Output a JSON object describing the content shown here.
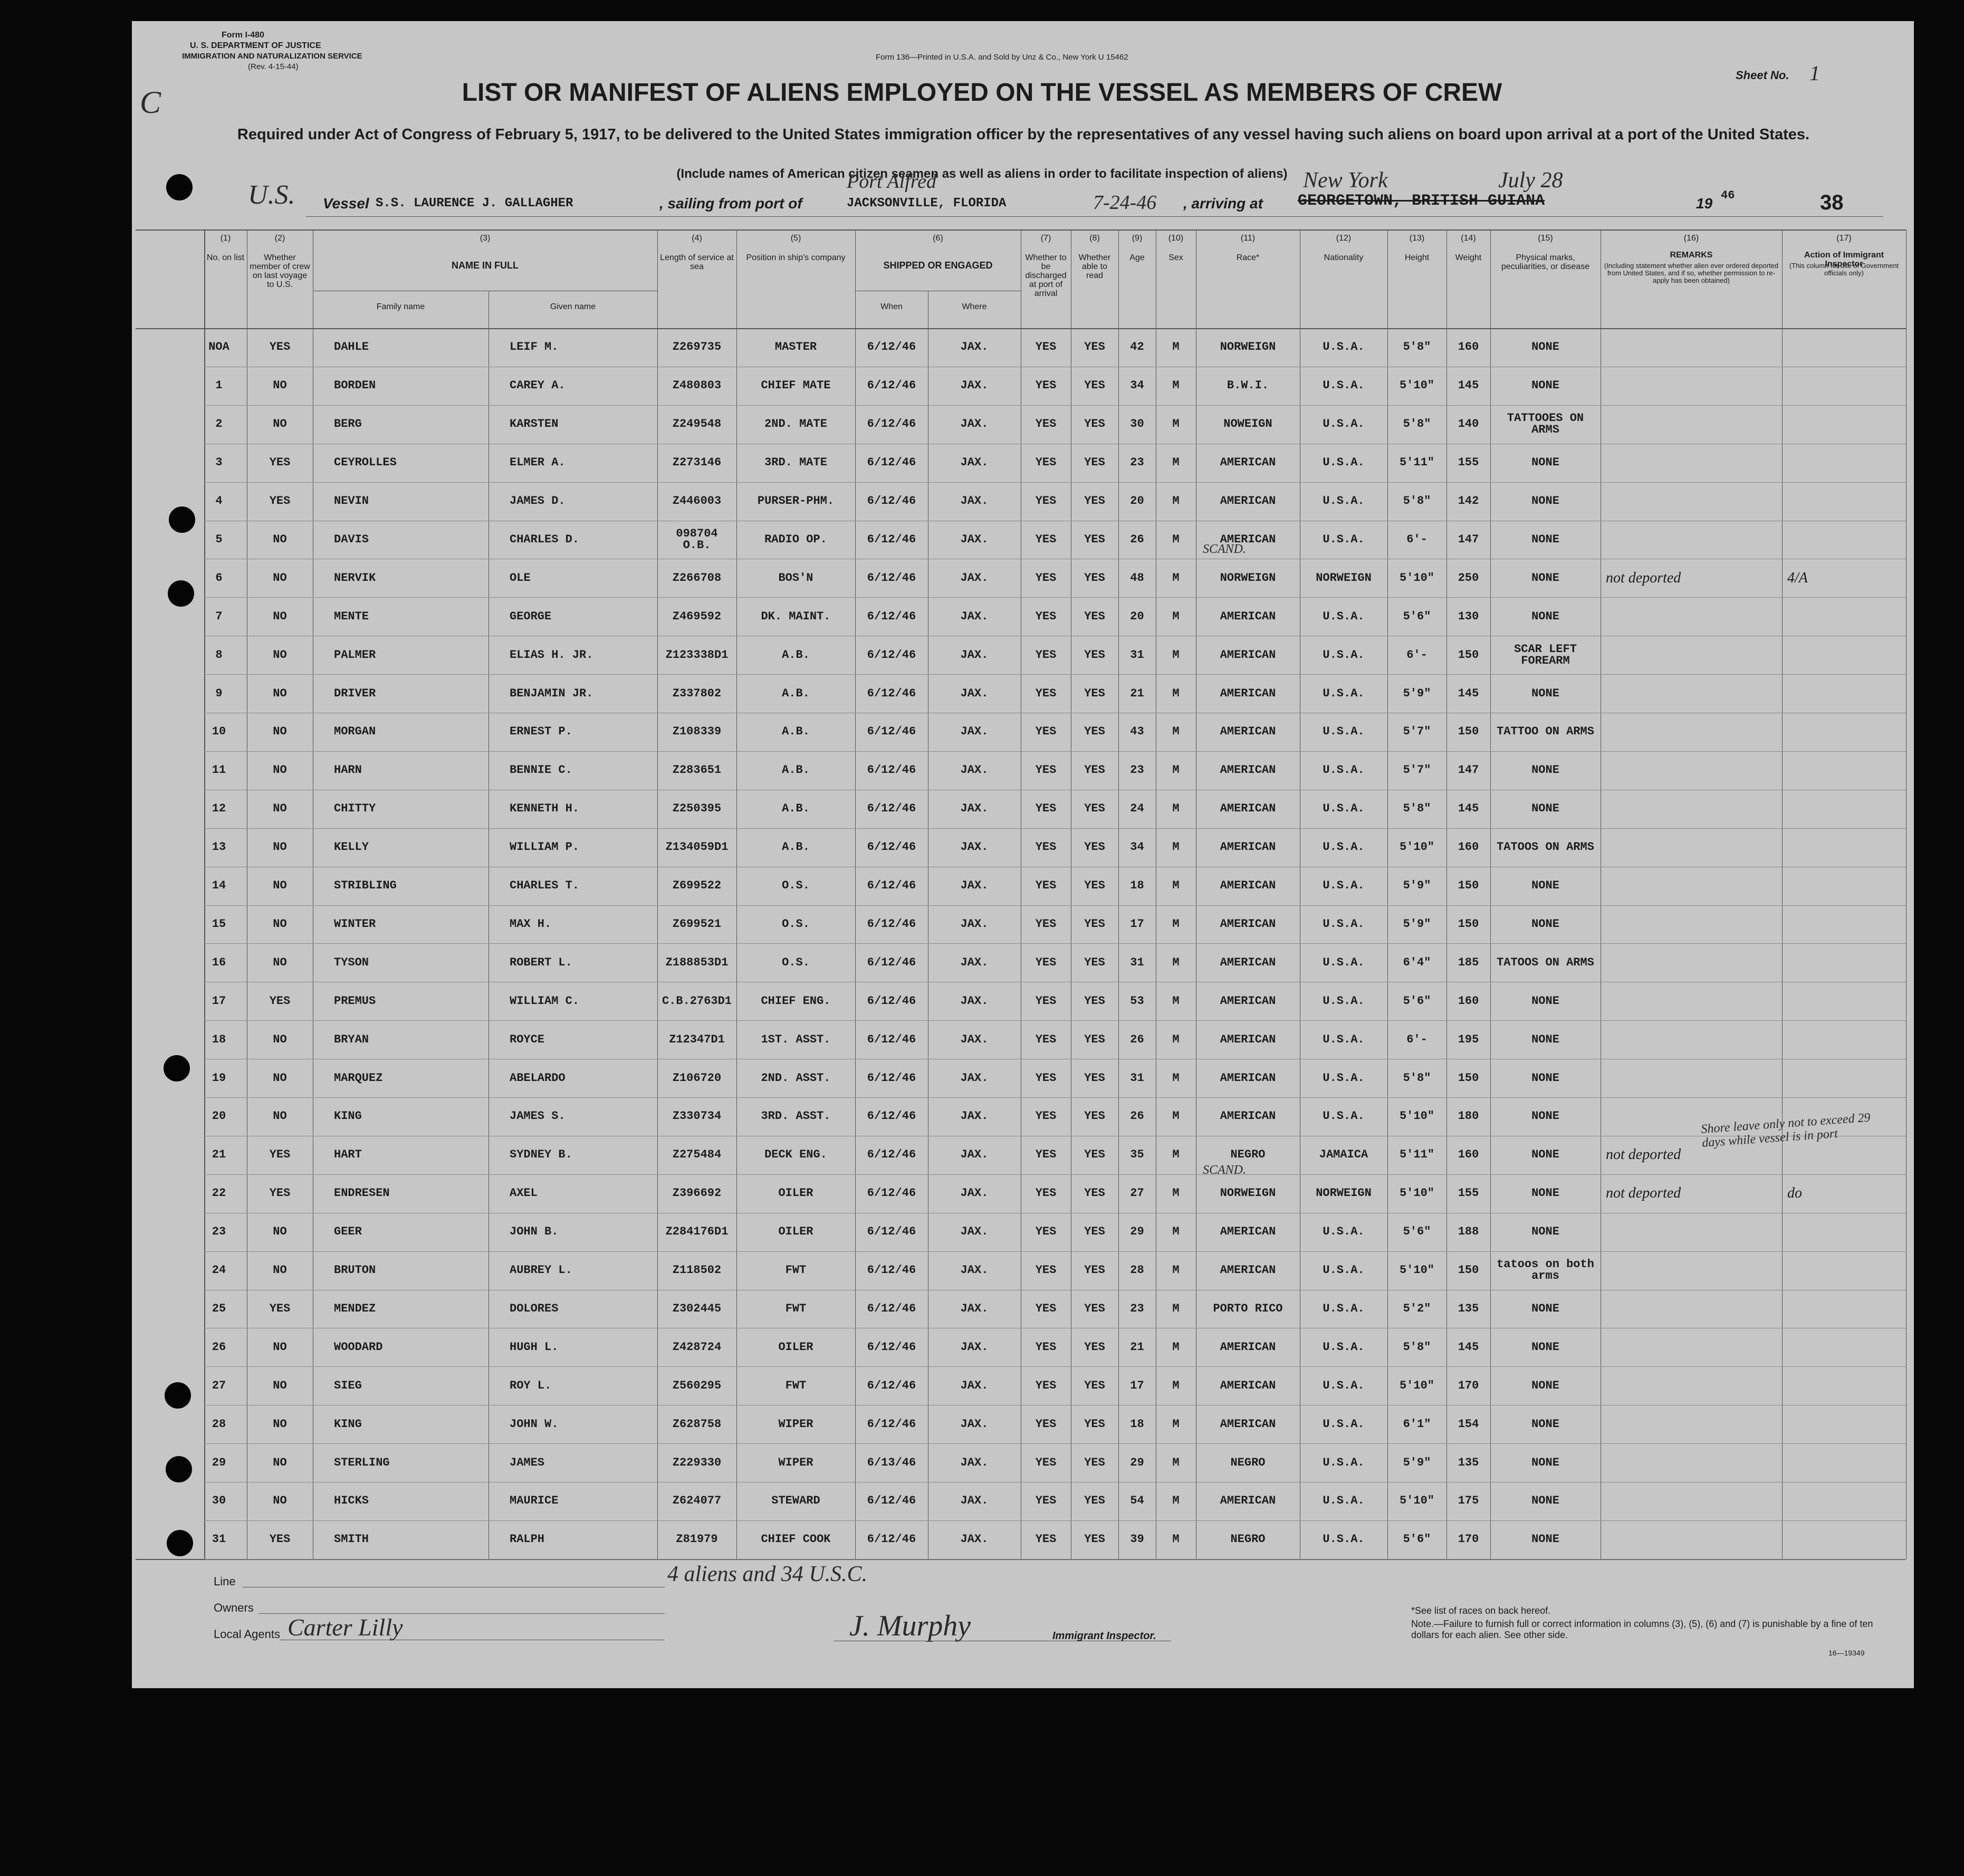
{
  "form": {
    "form_number": "Form I-480",
    "department": "U. S. DEPARTMENT OF JUSTICE",
    "service": "IMMIGRATION AND NATURALIZATION SERVICE",
    "revision": "(Rev. 4-15-44)",
    "printer": "Form 136—Printed in U.S.A. and Sold by Unz & Co., New York  U 15462",
    "sheet_label": "Sheet No.",
    "sheet_number": "1",
    "corner_mark": "C"
  },
  "header": {
    "title": "LIST OR MANIFEST OF ALIENS EMPLOYED ON THE VESSEL AS MEMBERS OF CREW",
    "subtitle": "Required under Act of Congress of February 5, 1917, to be delivered to the United States immigration officer by the representatives of any vessel having such aliens on board upon arrival at a port of the United States.",
    "note": "(Include names of American citizen seamen as well as aliens in order to facilitate inspection of aliens)"
  },
  "vessel": {
    "flag": "U.S.",
    "vessel_label": "Vessel",
    "vessel_name": "S.S. LAURENCE J. GALLAGHER",
    "sailing_label": ", sailing from port of",
    "port_handwritten": "Port Alfred",
    "port": "JACKSONVILLE, FLORIDA",
    "date": "7-24-46",
    "arriving_label": ", arriving at",
    "arriving_handwritten": "New York",
    "arriving_struck": "GEORGETOWN, BRITISH GUIANA",
    "arrival_date": "July 28",
    "year_prefix": "19",
    "year": "46",
    "page_number": "38"
  },
  "table": {
    "columns": [
      {
        "num": "(1)",
        "label": "No. on list"
      },
      {
        "num": "(2)",
        "label": "Whether member of crew on last voyage to U.S."
      },
      {
        "num": "(3)",
        "label": "NAME IN FULL",
        "sub": [
          "Family name",
          "Given name"
        ]
      },
      {
        "num": "(4)",
        "label": "Length of service at sea"
      },
      {
        "num": "(5)",
        "label": "Position in ship's company"
      },
      {
        "num": "(6)",
        "label": "SHIPPED OR ENGAGED",
        "sub": [
          "When",
          "Where"
        ]
      },
      {
        "num": "(7)",
        "label": "Whether to be discharged at port of arrival"
      },
      {
        "num": "(8)",
        "label": "Whether able to read"
      },
      {
        "num": "(9)",
        "label": "Age"
      },
      {
        "num": "(10)",
        "label": "Sex"
      },
      {
        "num": "(11)",
        "label": "Race*"
      },
      {
        "num": "(12)",
        "label": "Nationality"
      },
      {
        "num": "(13)",
        "label": "Height"
      },
      {
        "num": "(14)",
        "label": "Weight"
      },
      {
        "num": "(15)",
        "label": "Physical marks, peculiarities, or disease"
      },
      {
        "num": "(16)",
        "label": "REMARKS",
        "note": "(Including statement whether alien ever ordered deported from United States, and if so, whether permission to re-apply has been obtained)"
      },
      {
        "num": "(17)",
        "label": "Action of Immigrant Inspector",
        "note": "(This column for use of Government officials only)"
      }
    ],
    "rows": [
      [
        "NOA",
        "YES",
        "DAHLE",
        "LEIF M.",
        "Z269735",
        "MASTER",
        "6/12/46",
        "JAX.",
        "YES",
        "YES",
        "42",
        "M",
        "NORWEIGN",
        "U.S.A.",
        "5'8\"",
        "160",
        "NONE"
      ],
      [
        "1",
        "NO",
        "BORDEN",
        "CAREY A.",
        "Z480803",
        "CHIEF MATE",
        "6/12/46",
        "JAX.",
        "YES",
        "YES",
        "34",
        "M",
        "B.W.I.",
        "U.S.A.",
        "5'10\"",
        "145",
        "NONE"
      ],
      [
        "2",
        "NO",
        "BERG",
        "KARSTEN",
        "Z249548",
        "2ND. MATE",
        "6/12/46",
        "JAX.",
        "YES",
        "YES",
        "30",
        "M",
        "NOWEIGN",
        "U.S.A.",
        "5'8\"",
        "140",
        "TATTOOES ON ARMS"
      ],
      [
        "3",
        "YES",
        "CEYROLLES",
        "ELMER A.",
        "Z273146",
        "3RD. MATE",
        "6/12/46",
        "JAX.",
        "YES",
        "YES",
        "23",
        "M",
        "AMERICAN",
        "U.S.A.",
        "5'11\"",
        "155",
        "NONE"
      ],
      [
        "4",
        "YES",
        "NEVIN",
        "JAMES D.",
        "Z446003",
        "PURSER-PHM.",
        "6/12/46",
        "JAX.",
        "YES",
        "YES",
        "20",
        "M",
        "AMERICAN",
        "U.S.A.",
        "5'8\"",
        "142",
        "NONE"
      ],
      [
        "5",
        "NO",
        "DAVIS",
        "CHARLES D.",
        "098704\nO.B.",
        "RADIO OP.",
        "6/12/46",
        "JAX.",
        "YES",
        "YES",
        "26",
        "M",
        "AMERICAN",
        "U.S.A.",
        "6'-",
        "147",
        "NONE"
      ],
      [
        "6",
        "NO",
        "NERVIK",
        "OLE",
        "Z266708",
        "BOS'N",
        "6/12/46",
        "JAX.",
        "YES",
        "YES",
        "48",
        "M",
        "NORWEIGN",
        "NORWEIGN",
        "5'10\"",
        "250",
        "NONE",
        "not deported",
        "4/A"
      ],
      [
        "7",
        "NO",
        "MENTE",
        "GEORGE",
        "Z469592",
        "DK. MAINT.",
        "6/12/46",
        "JAX.",
        "YES",
        "YES",
        "20",
        "M",
        "AMERICAN",
        "U.S.A.",
        "5'6\"",
        "130",
        "NONE"
      ],
      [
        "8",
        "NO",
        "PALMER",
        "ELIAS H. JR.",
        "Z123338D1",
        "A.B.",
        "6/12/46",
        "JAX.",
        "YES",
        "YES",
        "31",
        "M",
        "AMERICAN",
        "U.S.A.",
        "6'-",
        "150",
        "SCAR LEFT FOREARM"
      ],
      [
        "9",
        "NO",
        "DRIVER",
        "BENJAMIN JR.",
        "Z337802",
        "A.B.",
        "6/12/46",
        "JAX.",
        "YES",
        "YES",
        "21",
        "M",
        "AMERICAN",
        "U.S.A.",
        "5'9\"",
        "145",
        "NONE"
      ],
      [
        "10",
        "NO",
        "MORGAN",
        "ERNEST P.",
        "Z108339",
        "A.B.",
        "6/12/46",
        "JAX.",
        "YES",
        "YES",
        "43",
        "M",
        "AMERICAN",
        "U.S.A.",
        "5'7\"",
        "150",
        "TATTOO ON ARMS"
      ],
      [
        "11",
        "NO",
        "HARN",
        "BENNIE C.",
        "Z283651",
        "A.B.",
        "6/12/46",
        "JAX.",
        "YES",
        "YES",
        "23",
        "M",
        "AMERICAN",
        "U.S.A.",
        "5'7\"",
        "147",
        "NONE"
      ],
      [
        "12",
        "NO",
        "CHITTY",
        "KENNETH H.",
        "Z250395",
        "A.B.",
        "6/12/46",
        "JAX.",
        "YES",
        "YES",
        "24",
        "M",
        "AMERICAN",
        "U.S.A.",
        "5'8\"",
        "145",
        "NONE"
      ],
      [
        "13",
        "NO",
        "KELLY",
        "WILLIAM P.",
        "Z134059D1",
        "A.B.",
        "6/12/46",
        "JAX.",
        "YES",
        "YES",
        "34",
        "M",
        "AMERICAN",
        "U.S.A.",
        "5'10\"",
        "160",
        "TATOOS ON ARMS"
      ],
      [
        "14",
        "NO",
        "STRIBLING",
        "CHARLES T.",
        "Z699522",
        "O.S.",
        "6/12/46",
        "JAX.",
        "YES",
        "YES",
        "18",
        "M",
        "AMERICAN",
        "U.S.A.",
        "5'9\"",
        "150",
        "NONE"
      ],
      [
        "15",
        "NO",
        "WINTER",
        "MAX H.",
        "Z699521",
        "O.S.",
        "6/12/46",
        "JAX.",
        "YES",
        "YES",
        "17",
        "M",
        "AMERICAN",
        "U.S.A.",
        "5'9\"",
        "150",
        "NONE"
      ],
      [
        "16",
        "NO",
        "TYSON",
        "ROBERT L.",
        "Z188853D1",
        "O.S.",
        "6/12/46",
        "JAX.",
        "YES",
        "YES",
        "31",
        "M",
        "AMERICAN",
        "U.S.A.",
        "6'4\"",
        "185",
        "TATOOS ON ARMS"
      ],
      [
        "17",
        "YES",
        "PREMUS",
        "WILLIAM C.",
        "C.B.2763D1",
        "CHIEF ENG.",
        "6/12/46",
        "JAX.",
        "YES",
        "YES",
        "53",
        "M",
        "AMERICAN",
        "U.S.A.",
        "5'6\"",
        "160",
        "NONE"
      ],
      [
        "18",
        "NO",
        "BRYAN",
        "ROYCE",
        "Z12347D1",
        "1ST. ASST.",
        "6/12/46",
        "JAX.",
        "YES",
        "YES",
        "26",
        "M",
        "AMERICAN",
        "U.S.A.",
        "6'-",
        "195",
        "NONE"
      ],
      [
        "19",
        "NO",
        "MARQUEZ",
        "ABELARDO",
        "Z106720",
        "2ND. ASST.",
        "6/12/46",
        "JAX.",
        "YES",
        "YES",
        "31",
        "M",
        "AMERICAN",
        "U.S.A.",
        "5'8\"",
        "150",
        "NONE"
      ],
      [
        "20",
        "NO",
        "KING",
        "JAMES S.",
        "Z330734",
        "3RD. ASST.",
        "6/12/46",
        "JAX.",
        "YES",
        "YES",
        "26",
        "M",
        "AMERICAN",
        "U.S.A.",
        "5'10\"",
        "180",
        "NONE"
      ],
      [
        "21",
        "YES",
        "HART",
        "SYDNEY B.",
        "Z275484",
        "DECK ENG.",
        "6/12/46",
        "JAX.",
        "YES",
        "YES",
        "35",
        "M",
        "NEGRO",
        "JAMAICA",
        "5'11\"",
        "160",
        "NONE",
        "not deported"
      ],
      [
        "22",
        "YES",
        "ENDRESEN",
        "AXEL",
        "Z396692",
        "OILER",
        "6/12/46",
        "JAX.",
        "YES",
        "YES",
        "27",
        "M",
        "NORWEIGN",
        "NORWEIGN",
        "5'10\"",
        "155",
        "NONE",
        "not deported",
        "do"
      ],
      [
        "23",
        "NO",
        "GEER",
        "JOHN B.",
        "Z284176D1",
        "OILER",
        "6/12/46",
        "JAX.",
        "YES",
        "YES",
        "29",
        "M",
        "AMERICAN",
        "U.S.A.",
        "5'6\"",
        "188",
        "NONE"
      ],
      [
        "24",
        "NO",
        "BRUTON",
        "AUBREY L.",
        "Z118502",
        "FWT",
        "6/12/46",
        "JAX.",
        "YES",
        "YES",
        "28",
        "M",
        "AMERICAN",
        "U.S.A.",
        "5'10\"",
        "150",
        "tatoos on both arms"
      ],
      [
        "25",
        "YES",
        "MENDEZ",
        "DOLORES",
        "Z302445",
        "FWT",
        "6/12/46",
        "JAX.",
        "YES",
        "YES",
        "23",
        "M",
        "PORTO RICO",
        "U.S.A.",
        "5'2\"",
        "135",
        "NONE"
      ],
      [
        "26",
        "NO",
        "WOODARD",
        "HUGH L.",
        "Z428724",
        "OILER",
        "6/12/46",
        "JAX.",
        "YES",
        "YES",
        "21",
        "M",
        "AMERICAN",
        "U.S.A.",
        "5'8\"",
        "145",
        "NONE"
      ],
      [
        "27",
        "NO",
        "SIEG",
        "ROY L.",
        "Z560295",
        "FWT",
        "6/12/46",
        "JAX.",
        "YES",
        "YES",
        "17",
        "M",
        "AMERICAN",
        "U.S.A.",
        "5'10\"",
        "170",
        "NONE"
      ],
      [
        "28",
        "NO",
        "KING",
        "JOHN W.",
        "Z628758",
        "WIPER",
        "6/12/46",
        "JAX.",
        "YES",
        "YES",
        "18",
        "M",
        "AMERICAN",
        "U.S.A.",
        "6'1\"",
        "154",
        "NONE"
      ],
      [
        "29",
        "NO",
        "STERLING",
        "JAMES",
        "Z229330",
        "WIPER",
        "6/13/46",
        "JAX.",
        "YES",
        "YES",
        "29",
        "M",
        "NEGRO",
        "U.S.A.",
        "5'9\"",
        "135",
        "NONE"
      ],
      [
        "30",
        "NO",
        "HICKS",
        "MAURICE",
        "Z624077",
        "STEWARD",
        "6/12/46",
        "JAX.",
        "YES",
        "YES",
        "54",
        "M",
        "AMERICAN",
        "U.S.A.",
        "5'10\"",
        "175",
        "NONE"
      ],
      [
        "31",
        "YES",
        "SMITH",
        "RALPH",
        "Z81979",
        "CHIEF COOK",
        "6/12/46",
        "JAX.",
        "YES",
        "YES",
        "39",
        "M",
        "NEGRO",
        "U.S.A.",
        "5'6\"",
        "170",
        "NONE"
      ]
    ]
  },
  "handwritten": {
    "row6_race": "SCAND.",
    "row22_race": "SCAND.",
    "row21_remark": "Shore leave only not to exceed 29 days while vessel is in port"
  },
  "footer": {
    "line_label": "Line",
    "owners_label": "Owners",
    "agents_label": "Local Agents",
    "agent_signature": "Carter Lilly",
    "crew_count": "4 aliens and 34 U.S.C.",
    "inspector_signature": "J. Murphy",
    "inspector_label": "Immigrant Inspector.",
    "races_note": "*See list of races on back hereof.",
    "penalty_note": "Note.—Failure to furnish full or correct information in columns (3), (5), (6) and (7) is punishable by a fine of ten dollars for each alien. See other side.",
    "form_code": "16—19349"
  }
}
